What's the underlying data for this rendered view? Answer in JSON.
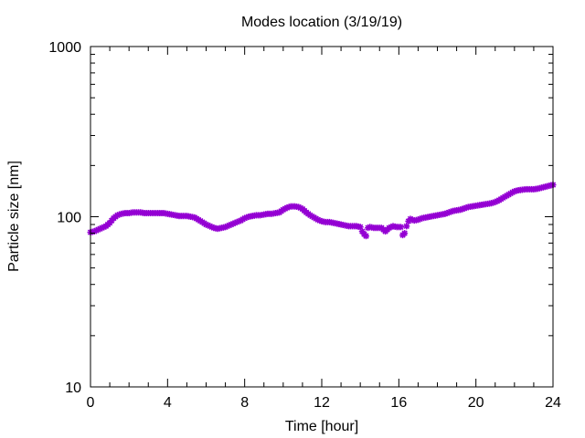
{
  "chart_data": {
    "type": "scatter",
    "title": "Modes location (3/19/19)",
    "xlabel": "Time [hour]",
    "ylabel": "Particle size [nm]",
    "xlim": [
      0,
      24
    ],
    "ylim": [
      10,
      1000
    ],
    "yscale": "log",
    "xticks": [
      0,
      4,
      8,
      12,
      16,
      20,
      24
    ],
    "xtick_labels": [
      "0",
      "4",
      "8",
      "12",
      "16",
      "20",
      "24"
    ],
    "yticks": [
      10,
      100,
      1000
    ],
    "ytick_labels": [
      "10",
      "100",
      "1000"
    ],
    "marker_color": "#9400d3",
    "grid": false,
    "legend": "none",
    "series": [
      {
        "x": [
          0.0,
          0.2,
          0.4,
          0.6,
          0.8,
          1.0,
          1.2,
          1.4,
          1.6,
          1.8,
          2.0,
          2.2,
          2.4,
          2.6,
          2.8,
          3.0,
          3.2,
          3.4,
          3.6,
          3.8,
          4.0,
          4.2,
          4.4,
          4.6,
          4.8,
          5.0,
          5.2,
          5.4,
          5.6,
          5.8,
          6.0,
          6.2,
          6.4,
          6.6,
          6.8,
          7.0,
          7.2,
          7.4,
          7.6,
          7.8,
          8.0,
          8.2,
          8.4,
          8.6,
          8.8,
          9.0,
          9.2,
          9.4,
          9.6,
          9.8,
          10.0,
          10.2,
          10.4,
          10.6,
          10.8,
          11.0,
          11.2,
          11.4,
          11.6,
          11.8,
          12.0,
          12.2,
          12.4,
          12.6,
          12.8,
          13.0,
          13.2,
          13.4,
          13.6,
          13.8,
          14.0,
          14.1,
          14.2,
          14.3,
          14.4,
          14.5,
          14.7,
          14.9,
          15.1,
          15.3,
          15.4,
          15.5,
          15.7,
          15.9,
          16.1,
          16.2,
          16.3,
          16.4,
          16.5,
          16.6,
          16.8,
          17.0,
          17.2,
          17.4,
          17.6,
          17.8,
          18.0,
          18.2,
          18.4,
          18.6,
          18.8,
          19.0,
          19.2,
          19.4,
          19.6,
          19.8,
          20.0,
          20.2,
          20.4,
          20.6,
          20.8,
          21.0,
          21.2,
          21.4,
          21.6,
          21.8,
          22.0,
          22.2,
          22.4,
          22.6,
          22.8,
          23.0,
          23.2,
          23.4,
          23.6,
          23.8,
          24.0
        ],
        "y": [
          81,
          82,
          84,
          86,
          88,
          92,
          98,
          102,
          104,
          105,
          105,
          106,
          106,
          106,
          105,
          105,
          105,
          105,
          105,
          105,
          104,
          103,
          102,
          101,
          101,
          101,
          100,
          99,
          96,
          93,
          90,
          88,
          86,
          85,
          86,
          87,
          89,
          91,
          93,
          95,
          98,
          100,
          101,
          102,
          102,
          103,
          104,
          104,
          105,
          106,
          110,
          113,
          115,
          115,
          114,
          111,
          106,
          102,
          99,
          96,
          94,
          93,
          93,
          92,
          91,
          90,
          89,
          88,
          88,
          88,
          87,
          82,
          79,
          77,
          86,
          87,
          86,
          86,
          86,
          82,
          84,
          86,
          88,
          87,
          87,
          78,
          80,
          88,
          94,
          97,
          95,
          96,
          98,
          99,
          100,
          101,
          102,
          103,
          104,
          106,
          108,
          109,
          110,
          112,
          114,
          115,
          116,
          117,
          118,
          119,
          120,
          122,
          125,
          129,
          133,
          137,
          141,
          143,
          144,
          145,
          145,
          145,
          146,
          148,
          150,
          152,
          154
        ]
      }
    ]
  }
}
